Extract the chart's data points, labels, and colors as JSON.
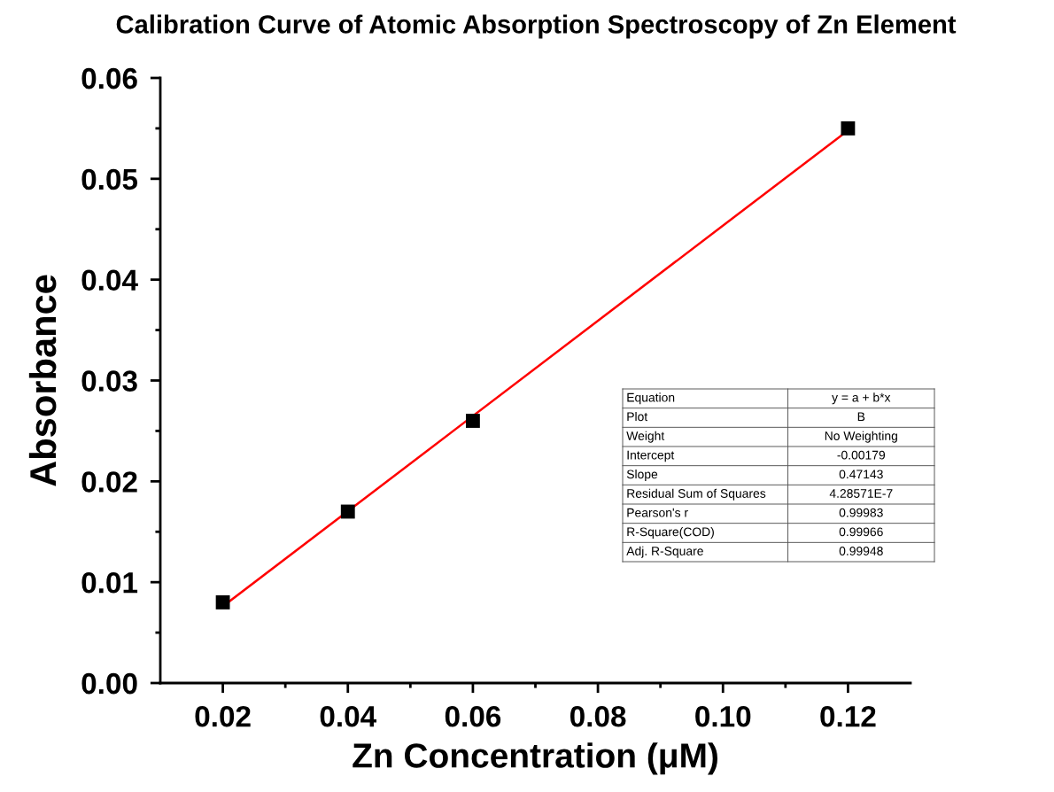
{
  "chart_data": {
    "type": "scatter",
    "title": "Calibration Curve of Atomic Absorption Spectroscopy of Zn Element",
    "xlabel": "Zn Concentration (μM)",
    "ylabel": "Absorbance",
    "series": [
      {
        "color": "#000000",
        "marker": "square",
        "x": [
          0.02,
          0.04,
          0.06,
          0.12
        ],
        "values": [
          0.008,
          0.017,
          0.026,
          0.055
        ]
      },
      {
        "type": "line",
        "color": "#ff0000",
        "marker": "none",
        "line_style": "solid",
        "x": [
          0.02,
          0.12
        ],
        "values": [
          0.0076,
          0.0548
        ]
      }
    ],
    "xlim": [
      0.01,
      0.13
    ],
    "xticks": [
      0.02,
      {
        "value": 0.03,
        "label": null
      },
      0.04,
      {
        "value": 0.05,
        "label": null
      },
      0.06,
      {
        "value": 0.07,
        "label": null
      },
      0.08,
      {
        "value": 0.09,
        "label": null
      },
      {
        "value": 0.1,
        "label": "0.10"
      },
      {
        "value": 0.11,
        "label": null
      },
      0.12
    ],
    "ylim": [
      0,
      0.06
    ],
    "yticks": [
      {
        "value": 0,
        "label": "0.00"
      },
      {
        "value": 0.005,
        "label": null
      },
      0.01,
      {
        "value": 0.015,
        "label": null
      },
      0.02,
      {
        "value": 0.025,
        "label": null
      },
      0.03,
      {
        "value": 0.035,
        "label": null
      },
      0.04,
      {
        "value": 0.045,
        "label": null
      },
      0.05,
      {
        "value": 0.055,
        "label": null
      },
      0.06
    ],
    "grid": false,
    "legend": false,
    "annotations": [
      "Equation",
      "y = a + b*x",
      "Plot",
      "B",
      "Weight",
      "No Weighting",
      "Intercept",
      "-0.00179",
      "Slope",
      "0.47143",
      "Residual Sum of Squares",
      "4.28571E-7",
      "Pearson's r",
      "0.99983",
      "R-Square(COD)",
      "0.99966",
      "Adj. R-Square",
      "0.99948"
    ]
  }
}
